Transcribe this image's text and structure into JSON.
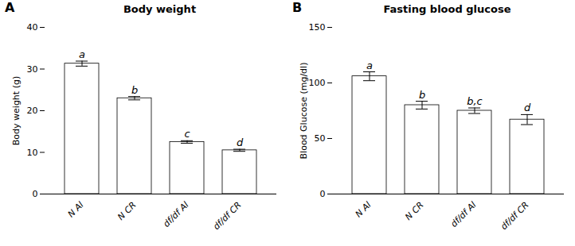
{
  "chart_data": [
    {
      "type": "bar",
      "panel_label": "A",
      "title": "Body weight",
      "ylabel": "Body weight (g)",
      "categories": [
        "N Al",
        "N CR",
        "df/df Al",
        "df/df CR"
      ],
      "values": [
        31.3,
        23.0,
        12.5,
        10.5
      ],
      "errors": [
        0.6,
        0.4,
        0.3,
        0.25
      ],
      "letters": [
        "a",
        "b",
        "c",
        "d"
      ],
      "color": "#ffffff",
      "ylim": [
        0,
        40
      ],
      "yticks": [
        0,
        10,
        20,
        30,
        40
      ],
      "grid": false
    },
    {
      "type": "bar",
      "panel_label": "B",
      "title": "Fasting blood glucose",
      "ylabel": "Blood Glucose (mg/dl)",
      "categories": [
        "N Al",
        "N CR",
        "df/df Al",
        "df/df CR"
      ],
      "values": [
        106.0,
        80.0,
        75.0,
        67.0
      ],
      "errors": [
        4.0,
        3.5,
        2.5,
        4.5
      ],
      "letters": [
        "a",
        "b",
        "b,c",
        "d"
      ],
      "color": "#ffffff",
      "ylim": [
        0,
        150
      ],
      "yticks": [
        0,
        50,
        100,
        150
      ],
      "grid": false
    }
  ]
}
